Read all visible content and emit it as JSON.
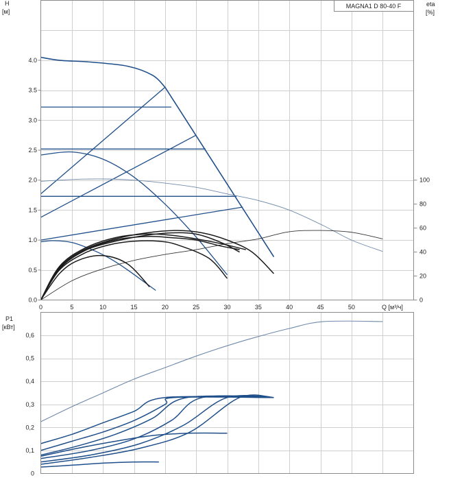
{
  "chart_data": [
    {
      "type": "line",
      "title": "MAGNA1 D 80-40 F",
      "ylabel": "H",
      "ylabel_unit": "[м]",
      "y2label": "eta",
      "y2label_unit": "[%]",
      "xlabel": "Q [м³/ч]",
      "xlim": [
        0,
        60
      ],
      "ylim": [
        0,
        5
      ],
      "y2lim": [
        0,
        100
      ],
      "x_ticks": [
        "0",
        "5",
        "10",
        "15",
        "20",
        "25",
        "30",
        "35",
        "40",
        "45",
        "50"
      ],
      "y_ticks": [
        "0.0",
        "0.5",
        "1.0",
        "1.5",
        "2.0",
        "2.5",
        "3.0",
        "3.5",
        "4.0"
      ],
      "y2_ticks": [
        "0",
        "20",
        "40",
        "60",
        "80",
        "100"
      ],
      "grid": true,
      "colors": {
        "curve": "#1f4f8a",
        "eta": "#222222",
        "thin": "#6f89aa"
      },
      "series": [
        {
          "role": "max-curve",
          "color": "#1f4f8a",
          "x": [
            0,
            3,
            8,
            14,
            18,
            20,
            37.5
          ],
          "y": [
            4.05,
            4.0,
            3.97,
            3.9,
            3.75,
            3.55,
            0.72
          ]
        },
        {
          "role": "max-curve-lower",
          "color": "#1f4f8a",
          "x": [
            0,
            5,
            10,
            15,
            20,
            25,
            30
          ],
          "y": [
            2.42,
            2.47,
            2.35,
            2.05,
            1.6,
            1.05,
            0.42
          ]
        },
        {
          "role": "min-curve",
          "color": "#1f4f8a",
          "x": [
            0,
            2,
            5,
            8,
            11,
            14,
            18.5
          ],
          "y": [
            0.97,
            0.99,
            0.96,
            0.85,
            0.7,
            0.5,
            0.16
          ]
        },
        {
          "role": "constant-pressure",
          "color": "#1f4f8a",
          "x": [
            0,
            21
          ],
          "y": [
            3.22,
            3.22
          ]
        },
        {
          "role": "constant-pressure",
          "color": "#1f4f8a",
          "x": [
            0,
            26.5
          ],
          "y": [
            2.52,
            2.52
          ]
        },
        {
          "role": "constant-pressure",
          "color": "#1f4f8a",
          "x": [
            0,
            31.5
          ],
          "y": [
            1.73,
            1.73
          ]
        },
        {
          "role": "proportional-pressure",
          "color": "#1f4f8a",
          "x": [
            0,
            20
          ],
          "y": [
            1.77,
            3.55
          ]
        },
        {
          "role": "proportional-pressure",
          "color": "#1f4f8a",
          "x": [
            0,
            25
          ],
          "y": [
            1.38,
            2.75
          ]
        },
        {
          "role": "proportional-pressure",
          "color": "#1f4f8a",
          "x": [
            0,
            32.5
          ],
          "y": [
            1.0,
            1.55
          ]
        },
        {
          "role": "eta-max",
          "color": "#6f89aa",
          "x": [
            0,
            5,
            10,
            15,
            20,
            25,
            30,
            35,
            40,
            45.5,
            50,
            55
          ],
          "y": [
            99,
            100.5,
            101,
            100,
            97.5,
            94,
            88.5,
            83,
            75,
            62,
            50,
            40.5
          ]
        },
        {
          "role": "eta-min",
          "color": "#333333",
          "x": [
            0,
            5,
            10,
            15,
            20,
            25,
            30,
            35,
            40,
            45,
            50,
            55
          ],
          "y": [
            0,
            16,
            26,
            33,
            38,
            42,
            47,
            51,
            57,
            58,
            56.5,
            51
          ]
        },
        {
          "role": "eta-setting",
          "color": "#1a1a1a",
          "x": [
            0,
            3,
            6,
            10,
            14,
            17.5
          ],
          "y": [
            0,
            22,
            33,
            37,
            30,
            11
          ]
        },
        {
          "role": "eta-setting",
          "color": "#1a1a1a",
          "x": [
            0,
            3,
            7,
            11,
            15,
            19,
            22,
            27,
            30
          ],
          "y": [
            0,
            25,
            39,
            46,
            49,
            49,
            46,
            35,
            18
          ]
        },
        {
          "role": "eta-setting",
          "color": "#1a1a1a",
          "x": [
            0,
            3,
            7,
            12,
            17,
            21,
            25,
            29,
            32
          ],
          "y": [
            0,
            26,
            41,
            49,
            54,
            56,
            55,
            48,
            40
          ]
        },
        {
          "role": "eta-setting",
          "color": "#1a1a1a",
          "x": [
            0,
            3,
            7,
            12,
            17,
            22,
            26,
            30,
            34,
            37.5
          ],
          "y": [
            0,
            27,
            42,
            51,
            56,
            58,
            56,
            50,
            40,
            22
          ]
        },
        {
          "role": "eta-setting",
          "color": "#1a1a1a",
          "x": [
            0,
            3,
            7,
            12,
            17,
            21,
            25,
            29,
            33
          ],
          "y": [
            0,
            28,
            43,
            52,
            55,
            54,
            51,
            47,
            42
          ]
        },
        {
          "role": "eta-setting",
          "color": "#1a1a1a",
          "x": [
            0,
            3,
            7,
            12,
            17,
            21,
            25,
            29,
            32
          ],
          "y": [
            0,
            26,
            41,
            50,
            53,
            52,
            50,
            45,
            42
          ]
        }
      ]
    },
    {
      "type": "line",
      "ylabel": "P1",
      "ylabel_unit": "[кВт]",
      "xlim": [
        0,
        60
      ],
      "ylim": [
        0,
        0.7
      ],
      "y_ticks": [
        "0",
        "0,1",
        "0,2",
        "0,3",
        "0,4",
        "0,5",
        "0,6"
      ],
      "grid": true,
      "colors": {
        "curve": "#1f4f8a"
      },
      "series": [
        {
          "color": "#6f89aa",
          "x": [
            0,
            5,
            10,
            15,
            20,
            25,
            30,
            35,
            40,
            45.5,
            55
          ],
          "y": [
            0.225,
            0.29,
            0.35,
            0.41,
            0.46,
            0.51,
            0.555,
            0.595,
            0.63,
            0.66,
            0.66
          ]
        },
        {
          "color": "#1f4f8a",
          "x": [
            0,
            5,
            10,
            15,
            20,
            37.5
          ],
          "y": [
            0.13,
            0.17,
            0.22,
            0.27,
            0.33,
            0.33
          ]
        },
        {
          "color": "#1f4f8a",
          "x": [
            0,
            5,
            10,
            15,
            20,
            21.5,
            37.5
          ],
          "y": [
            0.1,
            0.14,
            0.18,
            0.23,
            0.3,
            0.33,
            0.33
          ]
        },
        {
          "color": "#1f4f8a",
          "x": [
            0,
            6,
            12,
            18,
            23.5,
            37.5
          ],
          "y": [
            0.08,
            0.12,
            0.17,
            0.24,
            0.33,
            0.33
          ]
        },
        {
          "color": "#1f4f8a",
          "x": [
            0,
            8,
            15,
            21,
            26,
            37.5
          ],
          "y": [
            0.065,
            0.1,
            0.15,
            0.23,
            0.33,
            0.33
          ]
        },
        {
          "color": "#1f4f8a",
          "x": [
            0,
            8,
            16,
            23,
            30,
            37.5
          ],
          "y": [
            0.05,
            0.08,
            0.13,
            0.21,
            0.33,
            0.33
          ]
        },
        {
          "color": "#1f4f8a",
          "x": [
            0,
            8,
            16,
            24,
            32,
            37.5
          ],
          "y": [
            0.04,
            0.07,
            0.11,
            0.18,
            0.33,
            0.33
          ]
        },
        {
          "color": "#1f4f8a",
          "x": [
            0,
            6,
            12,
            18,
            24,
            30
          ],
          "y": [
            0.075,
            0.11,
            0.14,
            0.165,
            0.175,
            0.175
          ]
        },
        {
          "color": "#1f4f8a",
          "x": [
            0,
            5,
            10,
            15,
            19
          ],
          "y": [
            0.028,
            0.036,
            0.045,
            0.05,
            0.05
          ]
        }
      ]
    }
  ]
}
